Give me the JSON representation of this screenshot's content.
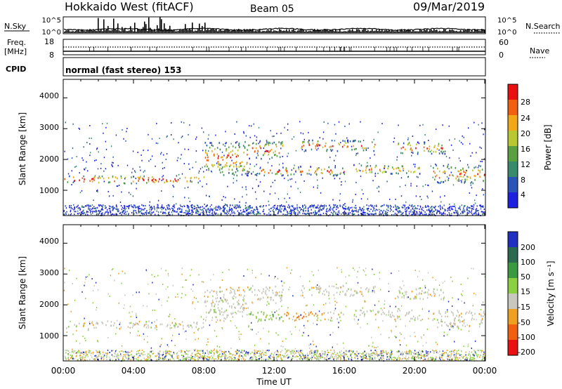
{
  "header": {
    "title": "Hokkaido West (fitACF)",
    "beam": "Beam 05",
    "date": "09/Mar/2019"
  },
  "strips": {
    "nsky_label": "N.Sky",
    "nsearch_label": "N.Search",
    "nsky_ticks": [
      "10^5",
      "10^0"
    ],
    "nsearch_ticks": [
      "10^5",
      "10^0"
    ],
    "freq_label_line1": "Freq.",
    "freq_label_line2": "[MHz]",
    "freq_ticks": [
      "18",
      "8"
    ],
    "nave_label": "Nave",
    "nave_ticks": [
      "60",
      "0"
    ],
    "cpid_label": "CPID",
    "cpid_text": "normal (fast stereo) 153"
  },
  "power_panel": {
    "ylabel": "Slant Range [km]",
    "yticks": [
      "4000",
      "3000",
      "2000",
      "1000"
    ],
    "colorbar_label": "Power [dB]",
    "colorbar_ticks": [
      "28",
      "24",
      "20",
      "16",
      "12",
      "8",
      "4"
    ]
  },
  "velocity_panel": {
    "ylabel": "Slant Range [km]",
    "yticks": [
      "4000",
      "3000",
      "2000",
      "1000"
    ],
    "colorbar_label": "Velocity [m s⁻¹]",
    "colorbar_ticks": [
      "200",
      "100",
      "50",
      "15",
      "-15",
      "-50",
      "-100",
      "-200"
    ]
  },
  "xaxis": {
    "label": "Time UT",
    "ticks": [
      "00:00",
      "04:00",
      "08:00",
      "12:00",
      "16:00",
      "20:00",
      "00:00"
    ]
  },
  "colors": {
    "power_scale": [
      "#1e22e0",
      "#2a55b8",
      "#3a8a6e",
      "#5aa040",
      "#b8c830",
      "#f0a818",
      "#f06010",
      "#e81010"
    ],
    "velocity_scale": [
      "#2030c0",
      "#2a6a50",
      "#3a9a40",
      "#8ad040",
      "#c8c8c0",
      "#f0a020",
      "#f06010",
      "#e81010"
    ]
  },
  "chart_data": {
    "type": "heatmap",
    "x_range_hours": [
      0,
      24
    ],
    "y_range_km": [
      180,
      4600
    ],
    "scatter_bands": [
      {
        "t_start": 0,
        "t_end": 8,
        "r_low": 1250,
        "r_high": 1500
      },
      {
        "t_start": 8,
        "t_end": 10.5,
        "r_low": 1500,
        "r_high": 2600
      },
      {
        "t_start": 10.5,
        "t_end": 12.5,
        "r_low": 2050,
        "r_high": 2650
      },
      {
        "t_start": 10.5,
        "t_end": 16,
        "r_low": 1500,
        "r_high": 1800
      },
      {
        "t_start": 13.5,
        "t_end": 16,
        "r_low": 2300,
        "r_high": 2650
      },
      {
        "t_start": 16,
        "t_end": 17.8,
        "r_low": 2300,
        "r_high": 2650
      },
      {
        "t_start": 16.5,
        "t_end": 20.3,
        "r_low": 1550,
        "r_high": 1850
      },
      {
        "t_start": 19,
        "t_end": 21.8,
        "r_low": 2200,
        "r_high": 2600
      },
      {
        "t_start": 21,
        "t_end": 24,
        "r_low": 1250,
        "r_high": 1850
      }
    ]
  }
}
